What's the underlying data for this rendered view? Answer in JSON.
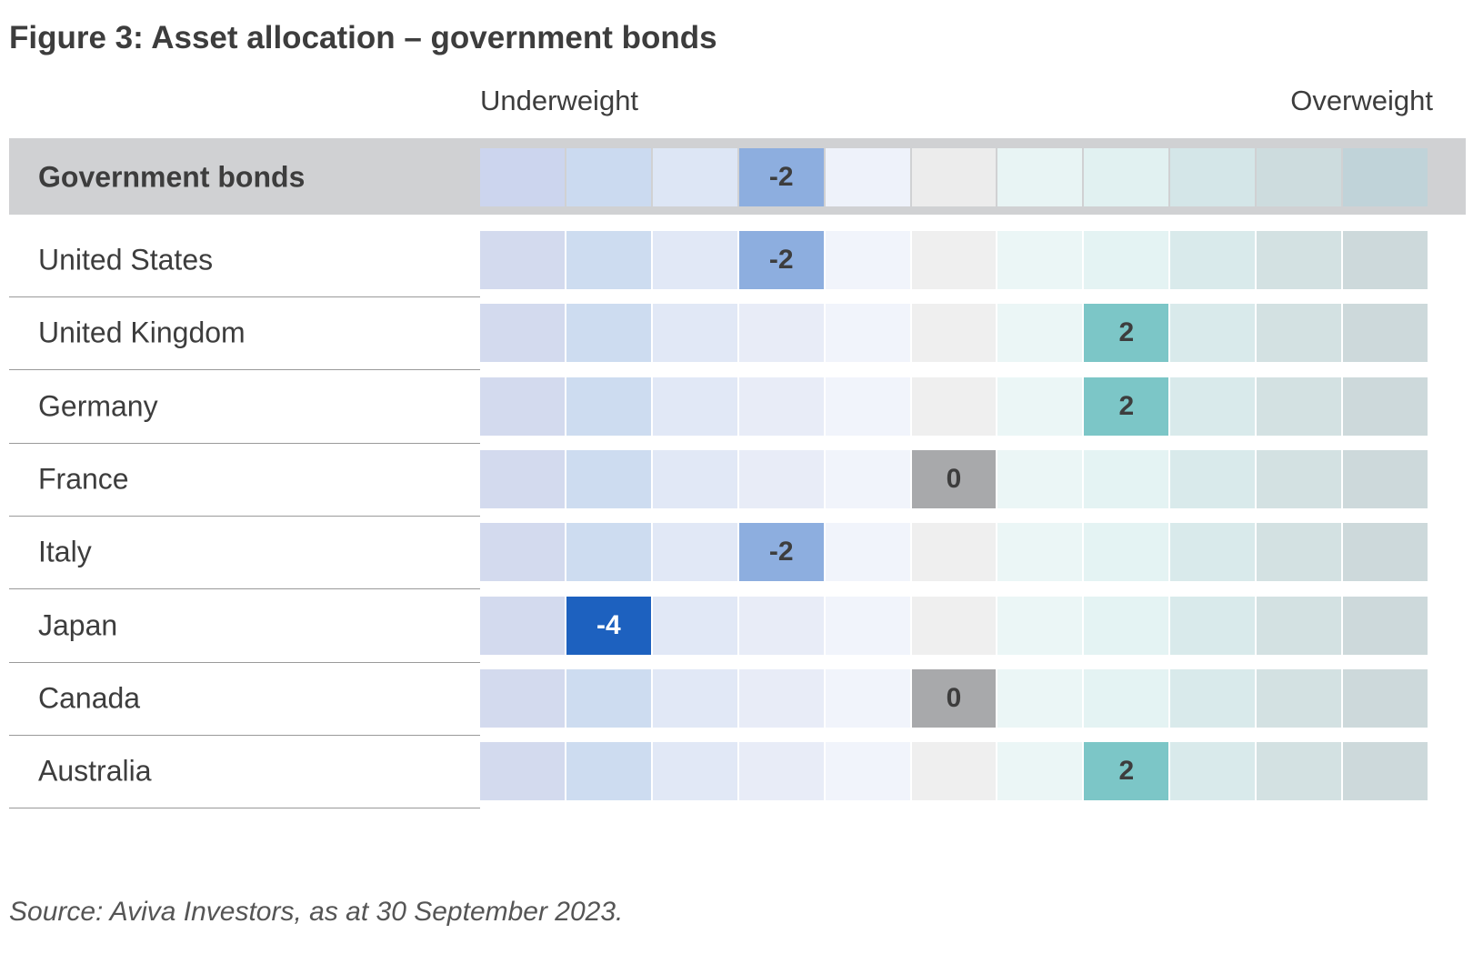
{
  "title": "Figure 3: Asset allocation – government bonds",
  "scale": {
    "left_label": "Underweight",
    "right_label": "Overweight"
  },
  "source": "Source: Aviva Investors, as at 30 September 2023.",
  "chart_data": {
    "type": "table",
    "title": "Figure 3: Asset allocation – government bonds",
    "scale_range": [
      -5,
      5
    ],
    "scale_labels": {
      "min": "Underweight",
      "max": "Overweight"
    },
    "rows": [
      {
        "name": "Government bonds",
        "value": -2,
        "header": true
      },
      {
        "name": "United States",
        "value": -2
      },
      {
        "name": "United Kingdom",
        "value": 2
      },
      {
        "name": "Germany",
        "value": 2
      },
      {
        "name": "France",
        "value": 0
      },
      {
        "name": "Italy",
        "value": -2
      },
      {
        "name": "Japan",
        "value": -4
      },
      {
        "name": "Canada",
        "value": 0
      },
      {
        "name": "Australia",
        "value": 2
      }
    ],
    "colors": {
      "scale_background": [
        "#d3daee",
        "#cddcf0",
        "#e1e8f6",
        "#e8ecf7",
        "#f1f4fb",
        "#efefef",
        "#ebf6f6",
        "#e4f3f3",
        "#d9eaeb",
        "#d3e1e2",
        "#cdd9db"
      ],
      "header_scale_background": [
        "#ccd5ee",
        "#cbdaf0",
        "#dde6f5",
        "#e6ebf6",
        "#eef2fa",
        "#ececec",
        "#e8f4f4",
        "#e1f1f1",
        "#d4e6e8",
        "#cddcde",
        "#c0d3d9"
      ],
      "value_-4": "#1d61bf",
      "value_-2": "#8daedf",
      "value_0": "#a8a9ab",
      "value_2": "#7cc6c7",
      "header_band": "#d0d1d3"
    }
  }
}
